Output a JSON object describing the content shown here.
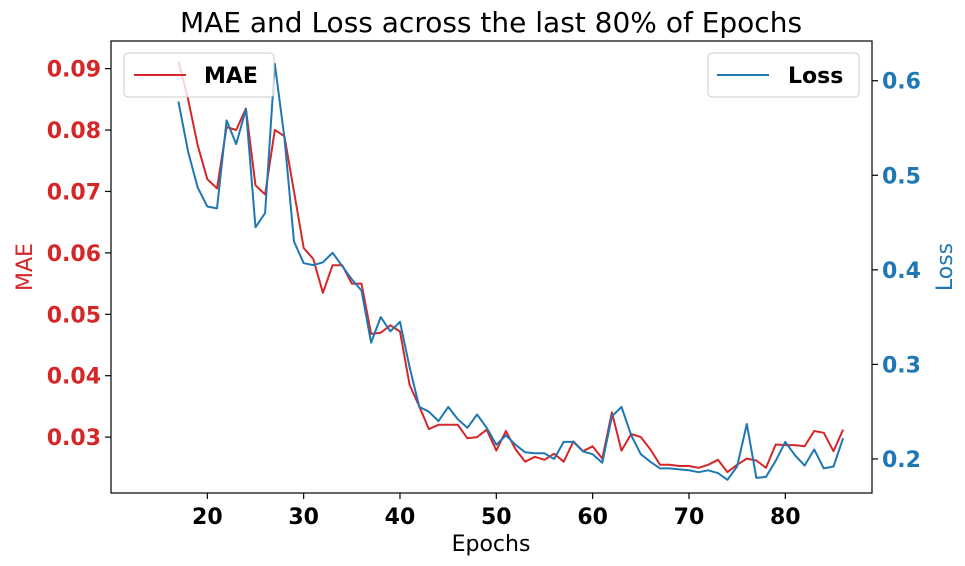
{
  "chart_data": {
    "type": "line",
    "title": "MAE and Loss across the last 80% of Epochs",
    "xlabel": "Epochs",
    "xlim": [
      10,
      89
    ],
    "xticks": [
      20,
      30,
      40,
      50,
      60,
      70,
      80
    ],
    "x": [
      17,
      18,
      19,
      20,
      21,
      22,
      23,
      24,
      25,
      26,
      27,
      28,
      29,
      30,
      31,
      32,
      33,
      34,
      35,
      36,
      37,
      38,
      39,
      40,
      41,
      42,
      43,
      44,
      45,
      46,
      47,
      48,
      49,
      50,
      51,
      52,
      53,
      54,
      55,
      56,
      57,
      58,
      59,
      60,
      61,
      62,
      63,
      64,
      65,
      66,
      67,
      68,
      69,
      70,
      71,
      72,
      73,
      74,
      75,
      76,
      77,
      78,
      79,
      80,
      81,
      82,
      83,
      84,
      85,
      86
    ],
    "y_left": {
      "label": "MAE",
      "color": "#d62728",
      "ylim": [
        0.0209,
        0.0945
      ],
      "ticks": [
        0.03,
        0.04,
        0.05,
        0.06,
        0.07,
        0.08,
        0.09
      ],
      "tick_labels": [
        "0.03",
        "0.04",
        "0.05",
        "0.06",
        "0.07",
        "0.08",
        "0.09"
      ]
    },
    "y_right": {
      "label": "Loss",
      "color": "#1f77b4",
      "ylim": [
        0.164,
        0.642
      ],
      "ticks": [
        0.2,
        0.3,
        0.4,
        0.5,
        0.6
      ],
      "tick_labels": [
        "0.2",
        "0.3",
        "0.4",
        "0.5",
        "0.6"
      ]
    },
    "series": [
      {
        "name": "MAE",
        "axis": "left",
        "color": "#d62728",
        "values": [
          0.0912,
          0.085,
          0.0775,
          0.072,
          0.0705,
          0.0805,
          0.08,
          0.0835,
          0.071,
          0.0695,
          0.08,
          0.079,
          0.07,
          0.0608,
          0.059,
          0.0535,
          0.058,
          0.058,
          0.055,
          0.055,
          0.0468,
          0.047,
          0.0482,
          0.0472,
          0.0385,
          0.035,
          0.0313,
          0.032,
          0.032,
          0.032,
          0.0298,
          0.03,
          0.0312,
          0.0278,
          0.031,
          0.028,
          0.026,
          0.0268,
          0.0263,
          0.0273,
          0.026,
          0.0293,
          0.0277,
          0.0285,
          0.0265,
          0.034,
          0.0278,
          0.0305,
          0.03,
          0.028,
          0.0255,
          0.0255,
          0.0253,
          0.0253,
          0.025,
          0.0255,
          0.0263,
          0.0243,
          0.0255,
          0.0265,
          0.0262,
          0.025,
          0.0288,
          0.0287,
          0.0287,
          0.0285,
          0.031,
          0.0307,
          0.0277,
          0.0312
        ]
      },
      {
        "name": "Loss",
        "axis": "right",
        "color": "#1f77b4",
        "values": [
          0.578,
          0.525,
          0.487,
          0.467,
          0.465,
          0.558,
          0.533,
          0.57,
          0.445,
          0.46,
          0.618,
          0.54,
          0.43,
          0.407,
          0.405,
          0.408,
          0.418,
          0.404,
          0.39,
          0.378,
          0.323,
          0.35,
          0.335,
          0.345,
          0.297,
          0.255,
          0.25,
          0.24,
          0.255,
          0.242,
          0.233,
          0.247,
          0.233,
          0.215,
          0.225,
          0.215,
          0.207,
          0.206,
          0.206,
          0.2,
          0.218,
          0.218,
          0.208,
          0.205,
          0.196,
          0.245,
          0.255,
          0.225,
          0.205,
          0.197,
          0.19,
          0.19,
          0.189,
          0.188,
          0.186,
          0.188,
          0.185,
          0.178,
          0.192,
          0.237,
          0.18,
          0.181,
          0.198,
          0.218,
          0.204,
          0.193,
          0.21,
          0.19,
          0.192,
          0.222
        ]
      }
    ],
    "legends": [
      {
        "entries": [
          "MAE"
        ],
        "placement": "top-left"
      },
      {
        "entries": [
          "Loss"
        ],
        "placement": "top-right"
      }
    ],
    "grid": false
  }
}
